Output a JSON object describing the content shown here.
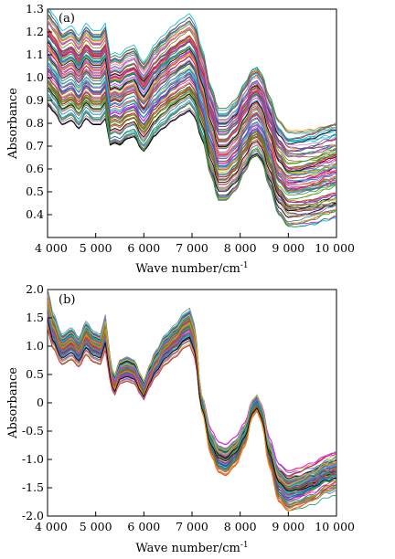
{
  "chart_data": [
    {
      "type": "line",
      "panel_label": "(a)",
      "xlabel": "Wave number/cm",
      "xlabel_sup": "-1",
      "ylabel": "Absorbance",
      "xlim": [
        4000,
        10000
      ],
      "ylim": [
        0.3,
        1.3
      ],
      "x_ticks": [
        4000,
        5000,
        6000,
        7000,
        8000,
        9000,
        10000
      ],
      "x_tick_labels": [
        "4 000",
        "5 000",
        "6 000",
        "7 000",
        "8 000",
        "9 000",
        "10 000"
      ],
      "y_ticks": [
        0.4,
        0.5,
        0.6,
        0.7,
        0.8,
        0.9,
        1.0,
        1.1,
        1.2,
        1.3
      ],
      "y_tick_labels": [
        "0.4",
        "0.5",
        "0.6",
        "0.7",
        "0.8",
        "0.9",
        "1.0",
        "1.1",
        "1.2",
        "1.3"
      ],
      "grid": false,
      "legend": "none",
      "series_count": 100,
      "representative_spectrum": {
        "x": [
          4000,
          4150,
          4300,
          4500,
          4650,
          4800,
          4950,
          5100,
          5200,
          5300,
          5400,
          5500,
          5650,
          5800,
          5950,
          6000,
          6100,
          6200,
          6400,
          6600,
          6800,
          6950,
          7050,
          7200,
          7400,
          7550,
          7700,
          7900,
          8100,
          8250,
          8350,
          8450,
          8600,
          8800,
          9000,
          9200,
          9500,
          9800,
          10000
        ],
        "y": [
          1.1,
          1.06,
          1.0,
          1.02,
          0.98,
          1.03,
          1.0,
          1.0,
          1.03,
          0.9,
          0.91,
          0.9,
          0.93,
          0.94,
          0.88,
          0.87,
          0.9,
          0.94,
          0.98,
          1.02,
          1.05,
          1.07,
          1.04,
          0.93,
          0.76,
          0.66,
          0.66,
          0.7,
          0.78,
          0.84,
          0.85,
          0.82,
          0.72,
          0.6,
          0.55,
          0.55,
          0.56,
          0.58,
          0.59
        ]
      },
      "offset_range": [
        -0.2,
        0.2
      ],
      "colors": [
        "#d62728",
        "#1f77b4",
        "#2ca02c",
        "#9467bd",
        "#17becf",
        "#e377c2",
        "#8c564b",
        "#bcbd22",
        "#ff7f0e",
        "#000000",
        "#7f7f7f",
        "#1a9850",
        "#6a3d9a",
        "#e6194b",
        "#00bcd4",
        "#3f51b5",
        "#ff00ff",
        "#808000"
      ]
    },
    {
      "type": "line",
      "panel_label": "(b)",
      "xlabel": "Wave number/cm",
      "xlabel_sup": "-1",
      "ylabel": "Absorbance",
      "xlim": [
        4000,
        10000
      ],
      "ylim": [
        -2.0,
        2.0
      ],
      "x_ticks": [
        4000,
        5000,
        6000,
        7000,
        8000,
        9000,
        10000
      ],
      "x_tick_labels": [
        "4 000",
        "5 000",
        "6 000",
        "7 000",
        "8 000",
        "9 000",
        "10 000"
      ],
      "y_ticks": [
        -2.0,
        -1.5,
        -1.0,
        -0.5,
        0,
        0.5,
        1.0,
        1.5,
        2.0
      ],
      "y_tick_labels": [
        "-2.0",
        "-1.5",
        "-1.0",
        "-0.5",
        "0",
        "0.5",
        "1.0",
        "1.5",
        "2.0"
      ],
      "grid": false,
      "legend": "none",
      "series_count": 100,
      "representative_spectrum": {
        "x": [
          4000,
          4100,
          4300,
          4500,
          4650,
          4800,
          4950,
          5100,
          5200,
          5300,
          5380,
          5500,
          5650,
          5800,
          5950,
          6000,
          6100,
          6250,
          6450,
          6650,
          6850,
          6950,
          7050,
          7200,
          7400,
          7550,
          7700,
          7900,
          8100,
          8250,
          8350,
          8450,
          8600,
          8800,
          9000,
          9200,
          9500,
          9800,
          10000
        ],
        "y": [
          1.7,
          1.3,
          0.95,
          1.05,
          0.9,
          1.15,
          1.0,
          0.95,
          1.25,
          0.6,
          0.3,
          0.55,
          0.6,
          0.55,
          0.3,
          0.22,
          0.45,
          0.7,
          0.95,
          1.1,
          1.3,
          1.35,
          1.1,
          0.0,
          -0.7,
          -0.95,
          -1.0,
          -0.85,
          -0.55,
          -0.1,
          0.0,
          -0.2,
          -0.85,
          -1.4,
          -1.55,
          -1.5,
          -1.4,
          -1.25,
          -1.2
        ]
      },
      "offset_range": [
        -0.15,
        0.15
      ],
      "colors": [
        "#d62728",
        "#1f77b4",
        "#2ca02c",
        "#9467bd",
        "#17becf",
        "#e377c2",
        "#8c564b",
        "#bcbd22",
        "#ff7f0e",
        "#000000",
        "#7f7f7f",
        "#1a9850",
        "#6a3d9a",
        "#e6194b",
        "#00bcd4",
        "#3f51b5",
        "#ff00ff",
        "#808000"
      ]
    }
  ]
}
